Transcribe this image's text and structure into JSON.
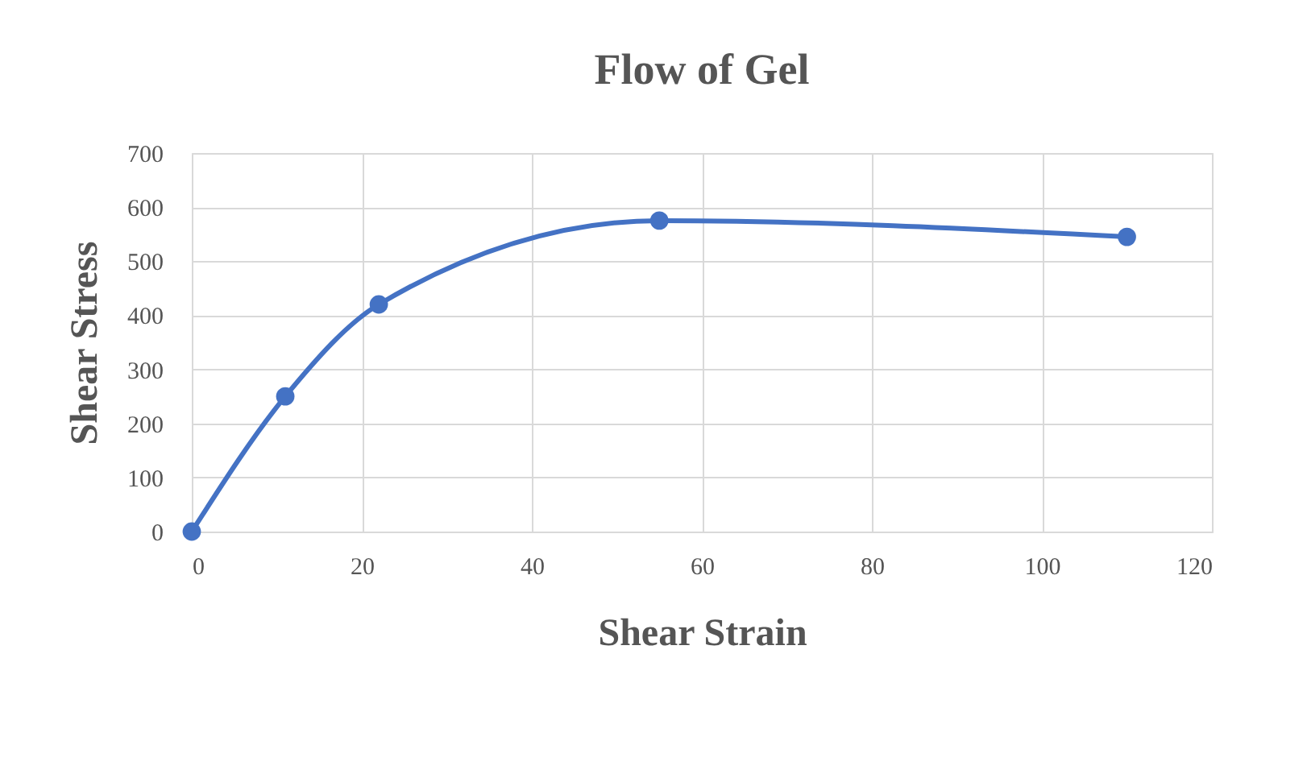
{
  "chart_data": {
    "type": "line",
    "title": "Flow of Gel",
    "xlabel": "Shear Strain",
    "ylabel": "Shear Stress",
    "x": [
      0,
      11,
      22,
      55,
      110
    ],
    "series": [
      {
        "color": "#4472c4",
        "values": [
          0,
          250,
          420,
          575,
          545
        ]
      }
    ],
    "xlim": [
      0,
      120
    ],
    "xticks": [
      0,
      20,
      40,
      60,
      80,
      100,
      120
    ],
    "ylim": [
      0,
      700
    ],
    "yticks": [
      0,
      100,
      200,
      300,
      400,
      500,
      600,
      700
    ],
    "grid": true,
    "marker": "circle",
    "line_style": "solid"
  }
}
